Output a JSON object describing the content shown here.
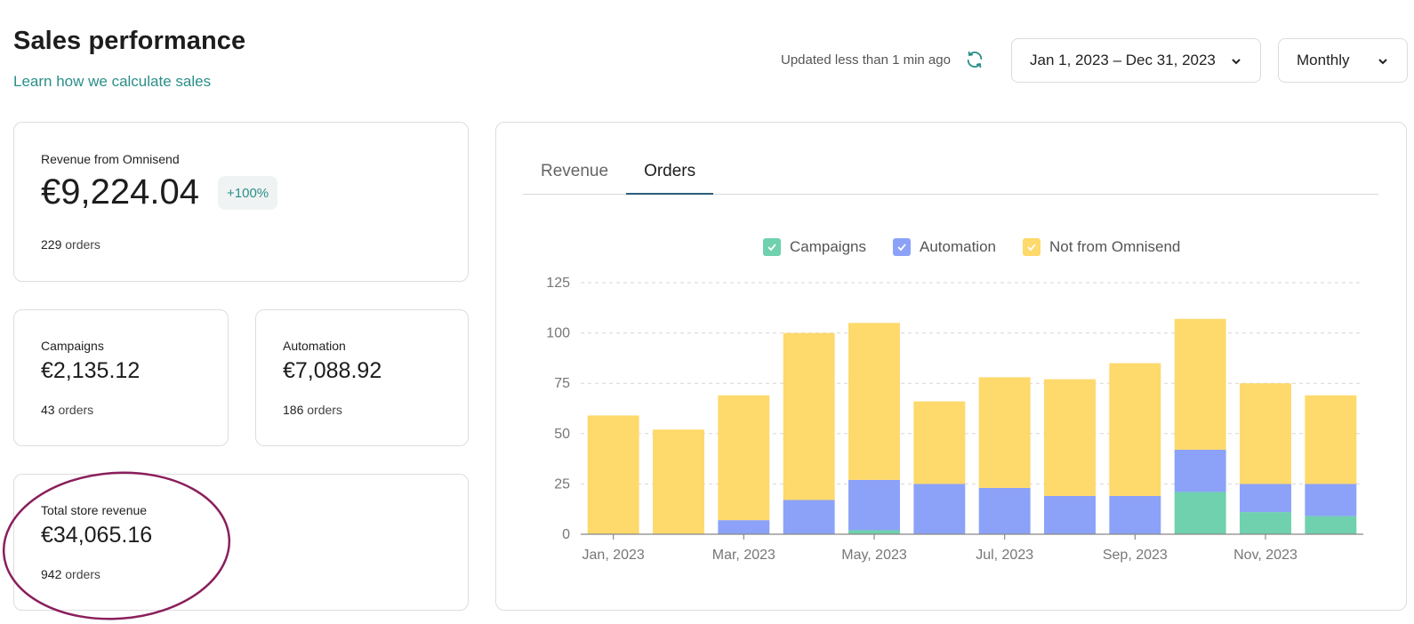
{
  "header": {
    "title": "Sales performance",
    "learn_link": "Learn how we calculate sales",
    "updated": "Updated less than 1 min ago",
    "date_range": "Jan 1, 2023 – Dec 31, 2023",
    "period": "Monthly"
  },
  "cards": {
    "revenue": {
      "label": "Revenue from Omnisend",
      "value": "€9,224.04",
      "badge": "+100%",
      "orders_count": "229",
      "orders_label": "orders"
    },
    "campaigns": {
      "label": "Campaigns",
      "value": "€2,135.12",
      "orders_count": "43",
      "orders_label": "orders"
    },
    "automation": {
      "label": "Automation",
      "value": "€7,088.92",
      "orders_count": "186",
      "orders_label": "orders"
    },
    "total": {
      "label": "Total store revenue",
      "value": "€34,065.16",
      "orders_count": "942",
      "orders_label": "orders"
    }
  },
  "tabs": [
    {
      "label": "Revenue",
      "active": false
    },
    {
      "label": "Orders",
      "active": true
    }
  ],
  "colors": {
    "campaigns": "#6fd1ad",
    "automation": "#8ca2f8",
    "not_from_omnisend": "#fed96b",
    "accent": "#2a8f88",
    "highlight": "#8a1f5c"
  },
  "icons": {
    "refresh": "refresh-icon",
    "chevron": "chevron-down-icon",
    "check": "check-icon"
  },
  "chart_data": {
    "type": "bar",
    "stacked": true,
    "x_tick_labels": [
      "Jan, 2023",
      "Mar, 2023",
      "May, 2023",
      "Jul, 2023",
      "Sep, 2023",
      "Nov, 2023"
    ],
    "categories": [
      "Jan, 2023",
      "Feb, 2023",
      "Mar, 2023",
      "Apr, 2023",
      "May, 2023",
      "Jun, 2023",
      "Jul, 2023",
      "Aug, 2023",
      "Sep, 2023",
      "Oct, 2023",
      "Nov, 2023",
      "Dec, 2023"
    ],
    "series": [
      {
        "name": "Campaigns",
        "color": "#6fd1ad",
        "values": [
          0,
          0,
          0,
          0,
          2,
          0,
          0,
          0,
          0,
          21,
          11,
          9
        ]
      },
      {
        "name": "Automation",
        "color": "#8ca2f8",
        "values": [
          0,
          0,
          7,
          17,
          25,
          25,
          23,
          19,
          19,
          21,
          14,
          16
        ]
      },
      {
        "name": "Not from Omnisend",
        "color": "#fed96b",
        "values": [
          59,
          52,
          62,
          83,
          78,
          41,
          55,
          58,
          66,
          65,
          50,
          44
        ]
      }
    ],
    "yticks": [
      0,
      25,
      50,
      75,
      100,
      125
    ],
    "ylim": [
      0,
      125
    ],
    "grid": true,
    "legend": "top-center"
  }
}
